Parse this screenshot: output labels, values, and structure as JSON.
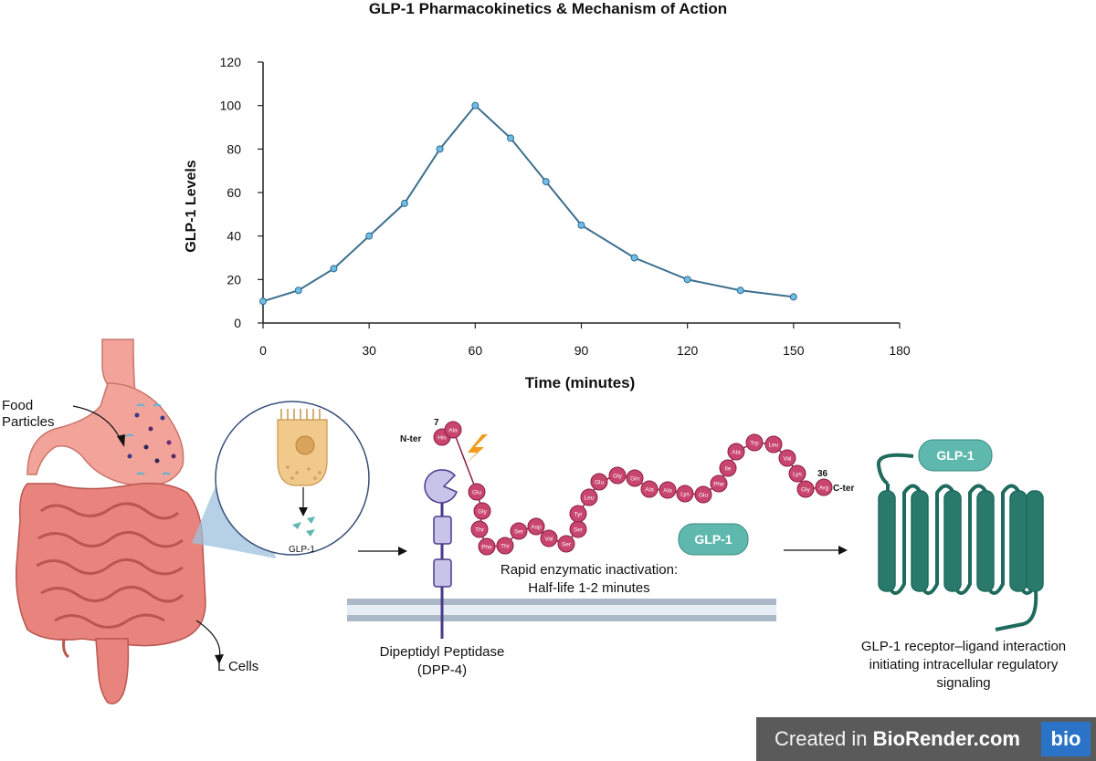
{
  "chart_data": {
    "type": "line",
    "title": "GLP-1 Pharmacokinetics & Mechanism of Action",
    "xlabel": "Time (minutes)",
    "ylabel": "GLP-1 Levels",
    "xlim": [
      0,
      180
    ],
    "ylim": [
      0,
      120
    ],
    "xticks": [
      "0",
      "30",
      "60",
      "90",
      "120",
      "150",
      "180"
    ],
    "yticks": [
      "0",
      "20",
      "40",
      "60",
      "80",
      "100",
      "120"
    ],
    "x": [
      0,
      10,
      20,
      30,
      40,
      50,
      60,
      70,
      80,
      90,
      105,
      120,
      135,
      150
    ],
    "y": [
      10,
      15,
      25,
      40,
      55,
      80,
      100,
      85,
      65,
      45,
      30,
      20,
      15,
      12
    ],
    "line_color": "#3d6f8e",
    "marker_color": "#6fbde6"
  },
  "diagram": {
    "food_label": "Food Particles",
    "lcells_label": "L Cells",
    "glp1_cell_label": "GLP-1",
    "nter_label": "N-ter",
    "cter_label": "C-ter",
    "residue_7": "7",
    "residue_36": "36",
    "peptide": [
      "His",
      "Ala",
      "Glu",
      "Gly",
      "Thr",
      "Phe",
      "Thr",
      "Ser",
      "Asp",
      "Val",
      "Ser",
      "Ser",
      "Tyr",
      "Leu",
      "Glu",
      "Gly",
      "Gln",
      "Ala",
      "Ala",
      "Lys",
      "Glu",
      "Phe",
      "Ile",
      "Ala",
      "Trp",
      "Leu",
      "Val",
      "Lys",
      "Gly",
      "Arg"
    ],
    "inactivation_line1": "Rapid enzymatic inactivation:",
    "inactivation_line2": "Half-life 1-2 minutes",
    "glp1_pill": "GLP-1",
    "receptor_glp1": "GLP-1",
    "dpp4_line1": "Dipeptidyl Peptidase",
    "dpp4_line2": "(DPP-4)",
    "receptor_line1": "GLP-1 receptor–ligand interaction",
    "receptor_line2": "initiating intracellular regulatory",
    "receptor_line3": "signaling"
  },
  "footer": {
    "prefix": "Created in ",
    "brand": "BioRender.com",
    "logo": "bio"
  },
  "colors": {
    "stomach": "#f2a49a",
    "intestine": "#e8837d",
    "peptide": "#c8456e",
    "receptor": "#1e6b5e",
    "glp1_pill": "#5fb8ad",
    "membrane": "#aab8c8"
  }
}
